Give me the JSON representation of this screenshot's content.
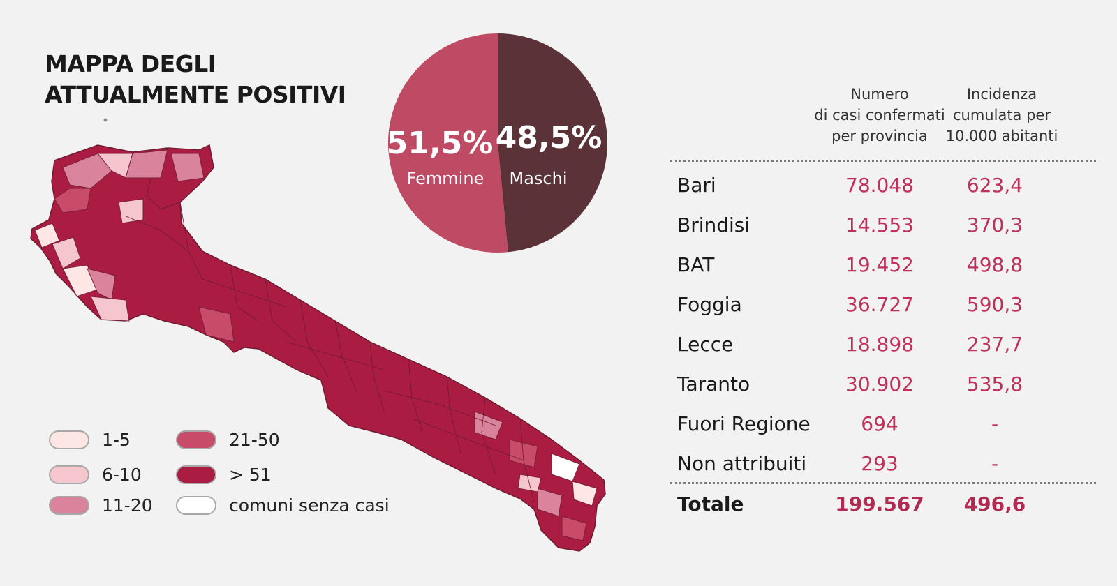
{
  "title": {
    "line1": "MAPPA DEGLI",
    "line2": "ATTUALMENTE POSITIVI"
  },
  "colors": {
    "background": "#f2f2f2",
    "female": "#bf4a64",
    "male": "#5a3237",
    "bin_1_5": "#fde6e3",
    "bin_6_10": "#f5c6cd",
    "bin_11_20": "#d9849c",
    "bin_21_50": "#c94b6a",
    "bin_51_plus": "#ab1c43",
    "no_cases": "#ffffff",
    "number_text": "#c0305a"
  },
  "chart_data": {
    "type": "pie",
    "slices": [
      {
        "label": "Femmine",
        "value": 51.5,
        "display": "51,5%"
      },
      {
        "label": "Maschi",
        "value": 48.5,
        "display": "48,5%"
      }
    ]
  },
  "legend": [
    {
      "label": "1-5",
      "color_key": "bin_1_5"
    },
    {
      "label": "6-10",
      "color_key": "bin_6_10"
    },
    {
      "label": "11-20",
      "color_key": "bin_11_20"
    },
    {
      "label": "21-50",
      "color_key": "bin_21_50"
    },
    {
      "label": "> 51",
      "color_key": "bin_51_plus"
    },
    {
      "label": "comuni senza casi",
      "color_key": "no_cases"
    }
  ],
  "table": {
    "header1": {
      "line1": "Numero",
      "line2": "di casi confermati",
      "line3": "per provincia"
    },
    "header2": {
      "line1": "Incidenza",
      "line2": "cumulata per",
      "line3": "10.000 abitanti"
    },
    "rows": [
      {
        "name": "Bari",
        "cases": "78.048",
        "incidence": "623,4"
      },
      {
        "name": "Brindisi",
        "cases": "14.553",
        "incidence": "370,3"
      },
      {
        "name": "BAT",
        "cases": "19.452",
        "incidence": "498,8"
      },
      {
        "name": "Foggia",
        "cases": "36.727",
        "incidence": "590,3"
      },
      {
        "name": "Lecce",
        "cases": "18.898",
        "incidence": "237,7"
      },
      {
        "name": "Taranto",
        "cases": "30.902",
        "incidence": "535,8"
      },
      {
        "name": "Fuori Regione",
        "cases": "694",
        "incidence": "-"
      },
      {
        "name": "Non attribuiti",
        "cases": "293",
        "incidence": "-"
      }
    ],
    "total": {
      "name": "Totale",
      "cases": "199.567",
      "incidence": "496,6"
    }
  }
}
